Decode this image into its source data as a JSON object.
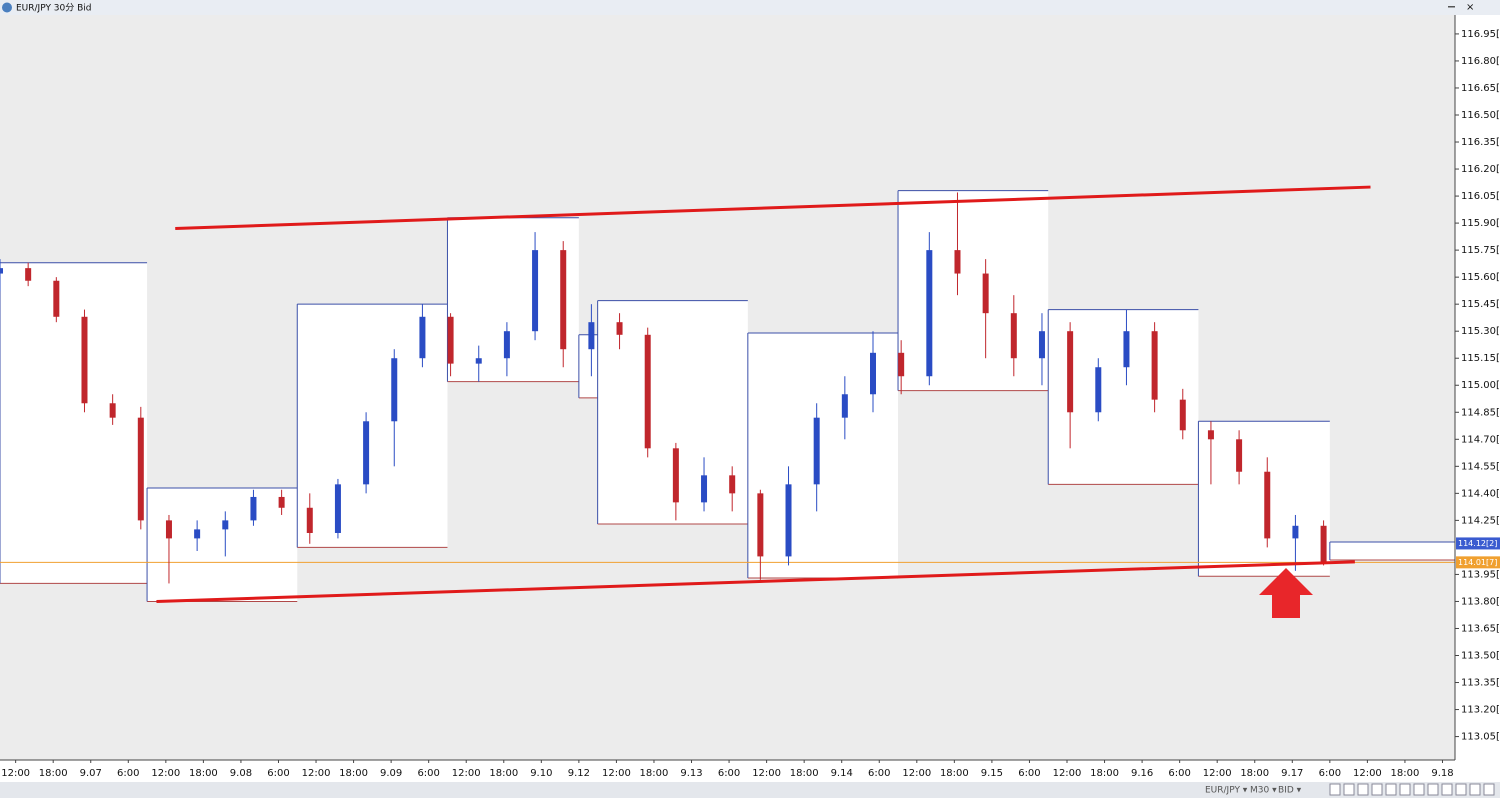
{
  "window": {
    "title": "EUR/JPY 30分 Bid"
  },
  "toolbar": {
    "symbol": "EUR/JPY ▾",
    "period": "M30 ▾",
    "side": "BID ▾"
  },
  "chart_data": {
    "type": "candlestick",
    "x": [
      0,
      9,
      18,
      27,
      36,
      45,
      54,
      63,
      72,
      81,
      90,
      99,
      108,
      117,
      126,
      135,
      144,
      153,
      162,
      171,
      180,
      189,
      198,
      207,
      216,
      225,
      234,
      243,
      252,
      261,
      270,
      279,
      288,
      297,
      306,
      315,
      324,
      333,
      342,
      351,
      360,
      369,
      378,
      387,
      396,
      405,
      414,
      423
    ],
    "open": [
      115.62,
      115.65,
      115.58,
      115.38,
      114.9,
      114.82,
      114.25,
      114.15,
      114.2,
      114.25,
      114.38,
      114.32,
      114.18,
      114.45,
      114.8,
      115.15,
      115.38,
      115.12,
      115.15,
      115.3,
      115.75,
      115.2,
      115.35,
      115.28,
      114.65,
      114.35,
      114.5,
      114.4,
      114.05,
      114.45,
      114.82,
      114.95,
      115.18,
      115.05,
      115.75,
      115.62,
      115.4,
      115.15,
      115.3,
      114.85,
      115.1,
      115.3,
      114.92,
      114.75,
      114.7,
      114.52,
      114.15,
      114.22
    ],
    "high": [
      115.7,
      115.68,
      115.6,
      115.42,
      114.95,
      114.88,
      114.28,
      114.25,
      114.3,
      114.42,
      114.42,
      114.4,
      114.48,
      114.85,
      115.2,
      115.45,
      115.4,
      115.22,
      115.35,
      115.85,
      115.8,
      115.45,
      115.4,
      115.32,
      114.68,
      114.6,
      114.55,
      114.42,
      114.55,
      114.9,
      115.05,
      115.3,
      115.25,
      115.85,
      116.07,
      115.7,
      115.5,
      115.4,
      115.35,
      115.15,
      115.42,
      115.35,
      114.98,
      114.8,
      114.75,
      114.6,
      114.28,
      114.25
    ],
    "low": [
      115.52,
      115.55,
      115.35,
      114.85,
      114.78,
      114.2,
      113.9,
      114.08,
      114.05,
      114.22,
      114.28,
      114.12,
      114.15,
      114.4,
      114.55,
      115.1,
      115.05,
      115.02,
      115.05,
      115.25,
      115.1,
      115.05,
      115.2,
      114.6,
      114.25,
      114.3,
      114.3,
      113.92,
      114.0,
      114.3,
      114.7,
      114.85,
      114.95,
      115.0,
      115.5,
      115.15,
      115.05,
      115.0,
      114.65,
      114.8,
      115.0,
      114.85,
      114.7,
      114.45,
      114.45,
      114.1,
      113.97,
      114.0
    ],
    "close": [
      115.65,
      115.58,
      115.38,
      114.9,
      114.82,
      114.25,
      114.15,
      114.2,
      114.25,
      114.38,
      114.32,
      114.18,
      114.45,
      114.8,
      115.15,
      115.38,
      115.12,
      115.15,
      115.3,
      115.75,
      115.2,
      115.35,
      115.28,
      114.65,
      114.35,
      114.5,
      114.4,
      114.05,
      114.45,
      114.82,
      114.95,
      115.18,
      115.05,
      115.75,
      115.62,
      115.4,
      115.15,
      115.3,
      114.85,
      115.1,
      115.3,
      114.92,
      114.75,
      114.7,
      114.52,
      114.15,
      114.22,
      114.02
    ],
    "up_color": "#2a4cc4",
    "down_color": "#c0262c",
    "xlim": [
      0,
      465
    ],
    "xticks": [
      {
        "value": 5,
        "label": "12:00"
      },
      {
        "value": 17,
        "label": "18:00"
      },
      {
        "value": 29,
        "label": "9.07"
      },
      {
        "value": 41,
        "label": "6:00"
      },
      {
        "value": 53,
        "label": "12:00"
      },
      {
        "value": 65,
        "label": "18:00"
      },
      {
        "value": 77,
        "label": "9.08"
      },
      {
        "value": 89,
        "label": "6:00"
      },
      {
        "value": 101,
        "label": "12:00"
      },
      {
        "value": 113,
        "label": "18:00"
      },
      {
        "value": 125,
        "label": "9.09"
      },
      {
        "value": 137,
        "label": "6:00"
      },
      {
        "value": 149,
        "label": "12:00"
      },
      {
        "value": 161,
        "label": "18:00"
      },
      {
        "value": 173,
        "label": "9.10"
      },
      {
        "value": 185,
        "label": "9.12"
      },
      {
        "value": 197,
        "label": "12:00"
      },
      {
        "value": 209,
        "label": "18:00"
      },
      {
        "value": 221,
        "label": "9.13"
      },
      {
        "value": 233,
        "label": "6:00"
      },
      {
        "value": 245,
        "label": "12:00"
      },
      {
        "value": 257,
        "label": "18:00"
      },
      {
        "value": 269,
        "label": "9.14"
      },
      {
        "value": 281,
        "label": "6:00"
      },
      {
        "value": 293,
        "label": "12:00"
      },
      {
        "value": 305,
        "label": "18:00"
      },
      {
        "value": 317,
        "label": "9.15"
      },
      {
        "value": 329,
        "label": "6:00"
      },
      {
        "value": 341,
        "label": "12:00"
      },
      {
        "value": 353,
        "label": "18:00"
      },
      {
        "value": 365,
        "label": "9.16"
      },
      {
        "value": 377,
        "label": "6:00"
      },
      {
        "value": 389,
        "label": "12:00"
      },
      {
        "value": 401,
        "label": "18:00"
      },
      {
        "value": 413,
        "label": "9.17"
      },
      {
        "value": 425,
        "label": "6:00"
      },
      {
        "value": 437,
        "label": "12:00"
      },
      {
        "value": 449,
        "label": "18:00"
      },
      {
        "value": 461,
        "label": "9.18"
      }
    ],
    "ylim": [
      112.92,
      117.055
    ],
    "yticks": [
      {
        "value": 116.95,
        "label": "116.95[0"
      },
      {
        "value": 116.8,
        "label": "116.80[0"
      },
      {
        "value": 116.65,
        "label": "116.65[0"
      },
      {
        "value": 116.5,
        "label": "116.50[0"
      },
      {
        "value": 116.35,
        "label": "116.35[0"
      },
      {
        "value": 116.2,
        "label": "116.20[0"
      },
      {
        "value": 116.05,
        "label": "116.05[0"
      },
      {
        "value": 115.9,
        "label": "115.90[0"
      },
      {
        "value": 115.75,
        "label": "115.75[0"
      },
      {
        "value": 115.6,
        "label": "115.60[0"
      },
      {
        "value": 115.45,
        "label": "115.45[0"
      },
      {
        "value": 115.3,
        "label": "115.30[0"
      },
      {
        "value": 115.15,
        "label": "115.15[0"
      },
      {
        "value": 115.0,
        "label": "115.00[0"
      },
      {
        "value": 114.85,
        "label": "114.85[0"
      },
      {
        "value": 114.7,
        "label": "114.70[0"
      },
      {
        "value": 114.55,
        "label": "114.55[0"
      },
      {
        "value": 114.4,
        "label": "114.40[0"
      },
      {
        "value": 114.25,
        "label": "114.25[0"
      },
      {
        "value": 113.95,
        "label": "113.95[0"
      },
      {
        "value": 113.8,
        "label": "113.80[0"
      },
      {
        "value": 113.65,
        "label": "113.65[0"
      },
      {
        "value": 113.5,
        "label": "113.50[0"
      },
      {
        "value": 113.35,
        "label": "113.35[0"
      },
      {
        "value": 113.2,
        "label": "113.20[0"
      },
      {
        "value": 113.05,
        "label": "113.05[0"
      }
    ],
    "daily_ranges": {
      "x_start": [
        0,
        47,
        95,
        143,
        185,
        191,
        239,
        287,
        335,
        383,
        425
      ],
      "x_end": [
        47,
        95,
        143,
        185,
        191,
        239,
        287,
        335,
        383,
        425,
        465
      ],
      "high": [
        115.68,
        114.43,
        115.45,
        115.93,
        115.28,
        115.47,
        115.29,
        116.08,
        115.42,
        114.8,
        114.13
      ],
      "low": [
        113.9,
        113.8,
        114.1,
        115.02,
        114.93,
        114.23,
        113.93,
        114.97,
        114.45,
        113.94,
        114.03
      ],
      "high_color": "#3b4fa8",
      "low_color": "#b04848"
    },
    "trendlines": [
      {
        "x": [
          56,
          438
        ],
        "y": [
          115.87,
          116.1
        ]
      },
      {
        "x": [
          50,
          433
        ],
        "y": [
          113.8,
          114.02
        ]
      }
    ],
    "trendline_color": "#e01a1a",
    "price_labels": [
      {
        "value": 114.122,
        "label": "114.12[2]",
        "color": "#3a5bd0",
        "show_line": false
      },
      {
        "value": 114.017,
        "label": "114.01[7]",
        "color": "#f0a030",
        "show_line": true
      }
    ]
  }
}
